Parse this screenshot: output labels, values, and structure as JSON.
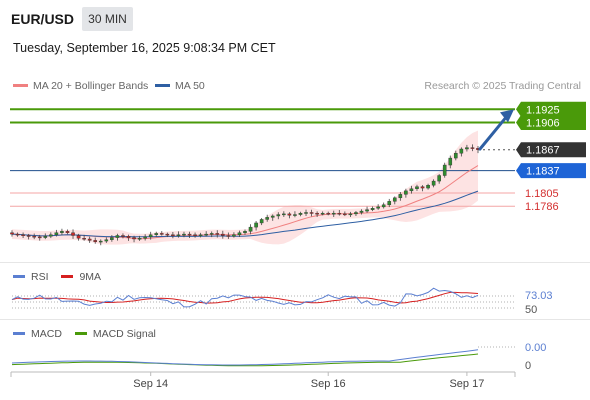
{
  "header": {
    "symbol": "EUR/USD",
    "timeframe": "30 MIN",
    "timestamp": "Tuesday, September 16, 2025 9:08:34 PM CET"
  },
  "legend": {
    "items": [
      {
        "label": "MA 20 + Bollinger Bands",
        "color": "#f08080"
      },
      {
        "label": "MA 50",
        "color": "#2e5fa3"
      }
    ],
    "source": "Research © 2025 Trading Central"
  },
  "chart_data": [
    {
      "type": "candlestick",
      "title": "",
      "series": [
        {
          "name": "MA 20 + Bollinger Bands",
          "color": "#f08080"
        },
        {
          "name": "MA 50",
          "color": "#2e5fa3"
        }
      ],
      "x_ticks": [
        "Sep 14",
        "Sep 16",
        "Sep 17"
      ],
      "ylim": [
        1.1706,
        1.1944
      ],
      "current_price": 1.1867,
      "levels": [
        {
          "value": 1.1925,
          "label": "1.1925",
          "kind": "target",
          "color": "#4a9a0a"
        },
        {
          "value": 1.1906,
          "label": "1.1906",
          "kind": "target",
          "color": "#4a9a0a"
        },
        {
          "value": 1.1867,
          "label": "1.1867",
          "kind": "last",
          "color": "#333333"
        },
        {
          "value": 1.1837,
          "label": "1.1837",
          "kind": "pivot",
          "color": "#1e64d6"
        },
        {
          "value": 1.1805,
          "label": "1.1805",
          "kind": "support",
          "color": "#e05050"
        },
        {
          "value": 1.1786,
          "label": "1.1786",
          "kind": "support",
          "color": "#e05050"
        }
      ],
      "closes": [
        1.1746,
        1.1745,
        1.1744,
        1.1743,
        1.1742,
        1.1741,
        1.1743,
        1.1745,
        1.1748,
        1.175,
        1.1748,
        1.1744,
        1.174,
        1.1739,
        1.1737,
        1.1735,
        1.1736,
        1.1738,
        1.1741,
        1.1744,
        1.1743,
        1.1741,
        1.1739,
        1.174,
        1.1742,
        1.1745,
        1.1747,
        1.1746,
        1.1745,
        1.1744,
        1.1745,
        1.1746,
        1.1745,
        1.1744,
        1.1745,
        1.1746,
        1.1747,
        1.1746,
        1.1744,
        1.1743,
        1.1745,
        1.1748,
        1.175,
        1.1756,
        1.1762,
        1.1767,
        1.177,
        1.1772,
        1.1774,
        1.1775,
        1.1773,
        1.1774,
        1.1776,
        1.1777,
        1.1776,
        1.1775,
        1.1776,
        1.1775,
        1.1776,
        1.1775,
        1.1774,
        1.1775,
        1.1777,
        1.1779,
        1.1781,
        1.1783,
        1.1785,
        1.1788,
        1.1793,
        1.1798,
        1.1803,
        1.1808,
        1.1811,
        1.1814,
        1.1812,
        1.1816,
        1.1822,
        1.183,
        1.1845,
        1.1855,
        1.1862,
        1.1868,
        1.187,
        1.1869,
        1.1867
      ]
    },
    {
      "type": "line",
      "title": "",
      "series": [
        {
          "name": "RSI",
          "color": "#5b7fd1"
        },
        {
          "name": "9MA",
          "color": "#d62020"
        }
      ],
      "ylim": [
        50,
        73.03
      ],
      "ticks": [
        "73.03",
        "50"
      ],
      "rsi_value": 73.03
    },
    {
      "type": "line",
      "title": "",
      "series": [
        {
          "name": "MACD",
          "color": "#5b7fd1"
        },
        {
          "name": "MACD Signal",
          "color": "#4a9a0a"
        }
      ],
      "ticks": [
        "0.00",
        "0"
      ],
      "macd_value": 0.0
    }
  ],
  "rsi_panel": {
    "legend": [
      {
        "label": "RSI",
        "color": "#5b7fd1"
      },
      {
        "label": "9MA",
        "color": "#d62020"
      }
    ],
    "value_label": "73.03",
    "level_label": "50"
  },
  "macd_panel": {
    "legend": [
      {
        "label": "MACD",
        "color": "#5b7fd1"
      },
      {
        "label": "MACD Signal",
        "color": "#4a9a0a"
      }
    ],
    "value_label": "0.00",
    "zero_label": "0"
  },
  "x_axis": {
    "ticks": [
      "Sep 14",
      "Sep 16",
      "Sep 17"
    ]
  }
}
